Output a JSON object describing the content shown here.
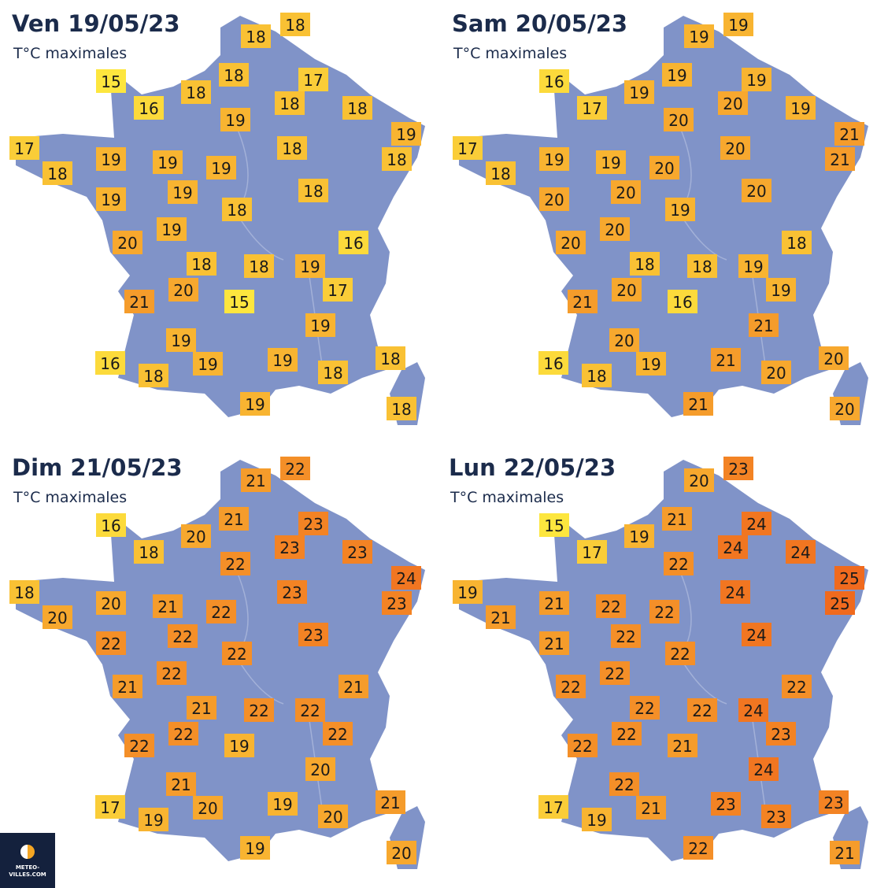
{
  "maps": [
    {
      "title": "Ven 19/05/23",
      "subtitle": "T°C maximales",
      "temperatures": [
        18,
        18,
        15,
        18,
        17,
        16,
        18,
        18,
        18,
        19,
        17,
        19,
        18,
        19,
        19,
        19,
        18,
        18,
        19,
        19,
        18,
        18,
        19,
        20,
        16,
        18,
        18,
        19,
        20,
        17,
        21,
        15,
        19,
        19,
        16,
        18,
        19,
        19,
        18,
        18,
        19,
        18
      ]
    },
    {
      "title": "Sam 20/05/23",
      "subtitle": "T°C maximales",
      "temperatures": [
        19,
        19,
        16,
        19,
        19,
        17,
        19,
        20,
        19,
        20,
        17,
        21,
        18,
        19,
        19,
        20,
        20,
        21,
        20,
        20,
        20,
        19,
        20,
        20,
        18,
        18,
        18,
        19,
        20,
        19,
        21,
        16,
        21,
        20,
        16,
        18,
        19,
        21,
        20,
        20,
        21,
        20
      ]
    },
    {
      "title": "Dim 21/05/23",
      "subtitle": "T°C maximales",
      "temperatures": [
        22,
        21,
        16,
        21,
        23,
        18,
        20,
        23,
        23,
        22,
        18,
        24,
        20,
        20,
        21,
        22,
        23,
        23,
        22,
        22,
        23,
        22,
        22,
        21,
        21,
        21,
        22,
        22,
        22,
        22,
        22,
        19,
        20,
        21,
        17,
        19,
        20,
        19,
        20,
        21,
        19,
        20
      ]
    },
    {
      "title": "Lun 22/05/23",
      "subtitle": "T°C maximales",
      "temperatures": [
        23,
        20,
        15,
        21,
        24,
        17,
        19,
        24,
        24,
        22,
        19,
        25,
        21,
        21,
        22,
        22,
        24,
        25,
        21,
        22,
        24,
        22,
        22,
        22,
        22,
        22,
        22,
        24,
        22,
        23,
        22,
        21,
        24,
        22,
        17,
        19,
        21,
        23,
        23,
        23,
        22,
        21
      ]
    }
  ],
  "logo": {
    "line1": "METEO-",
    "line2": "VILLES.COM"
  }
}
